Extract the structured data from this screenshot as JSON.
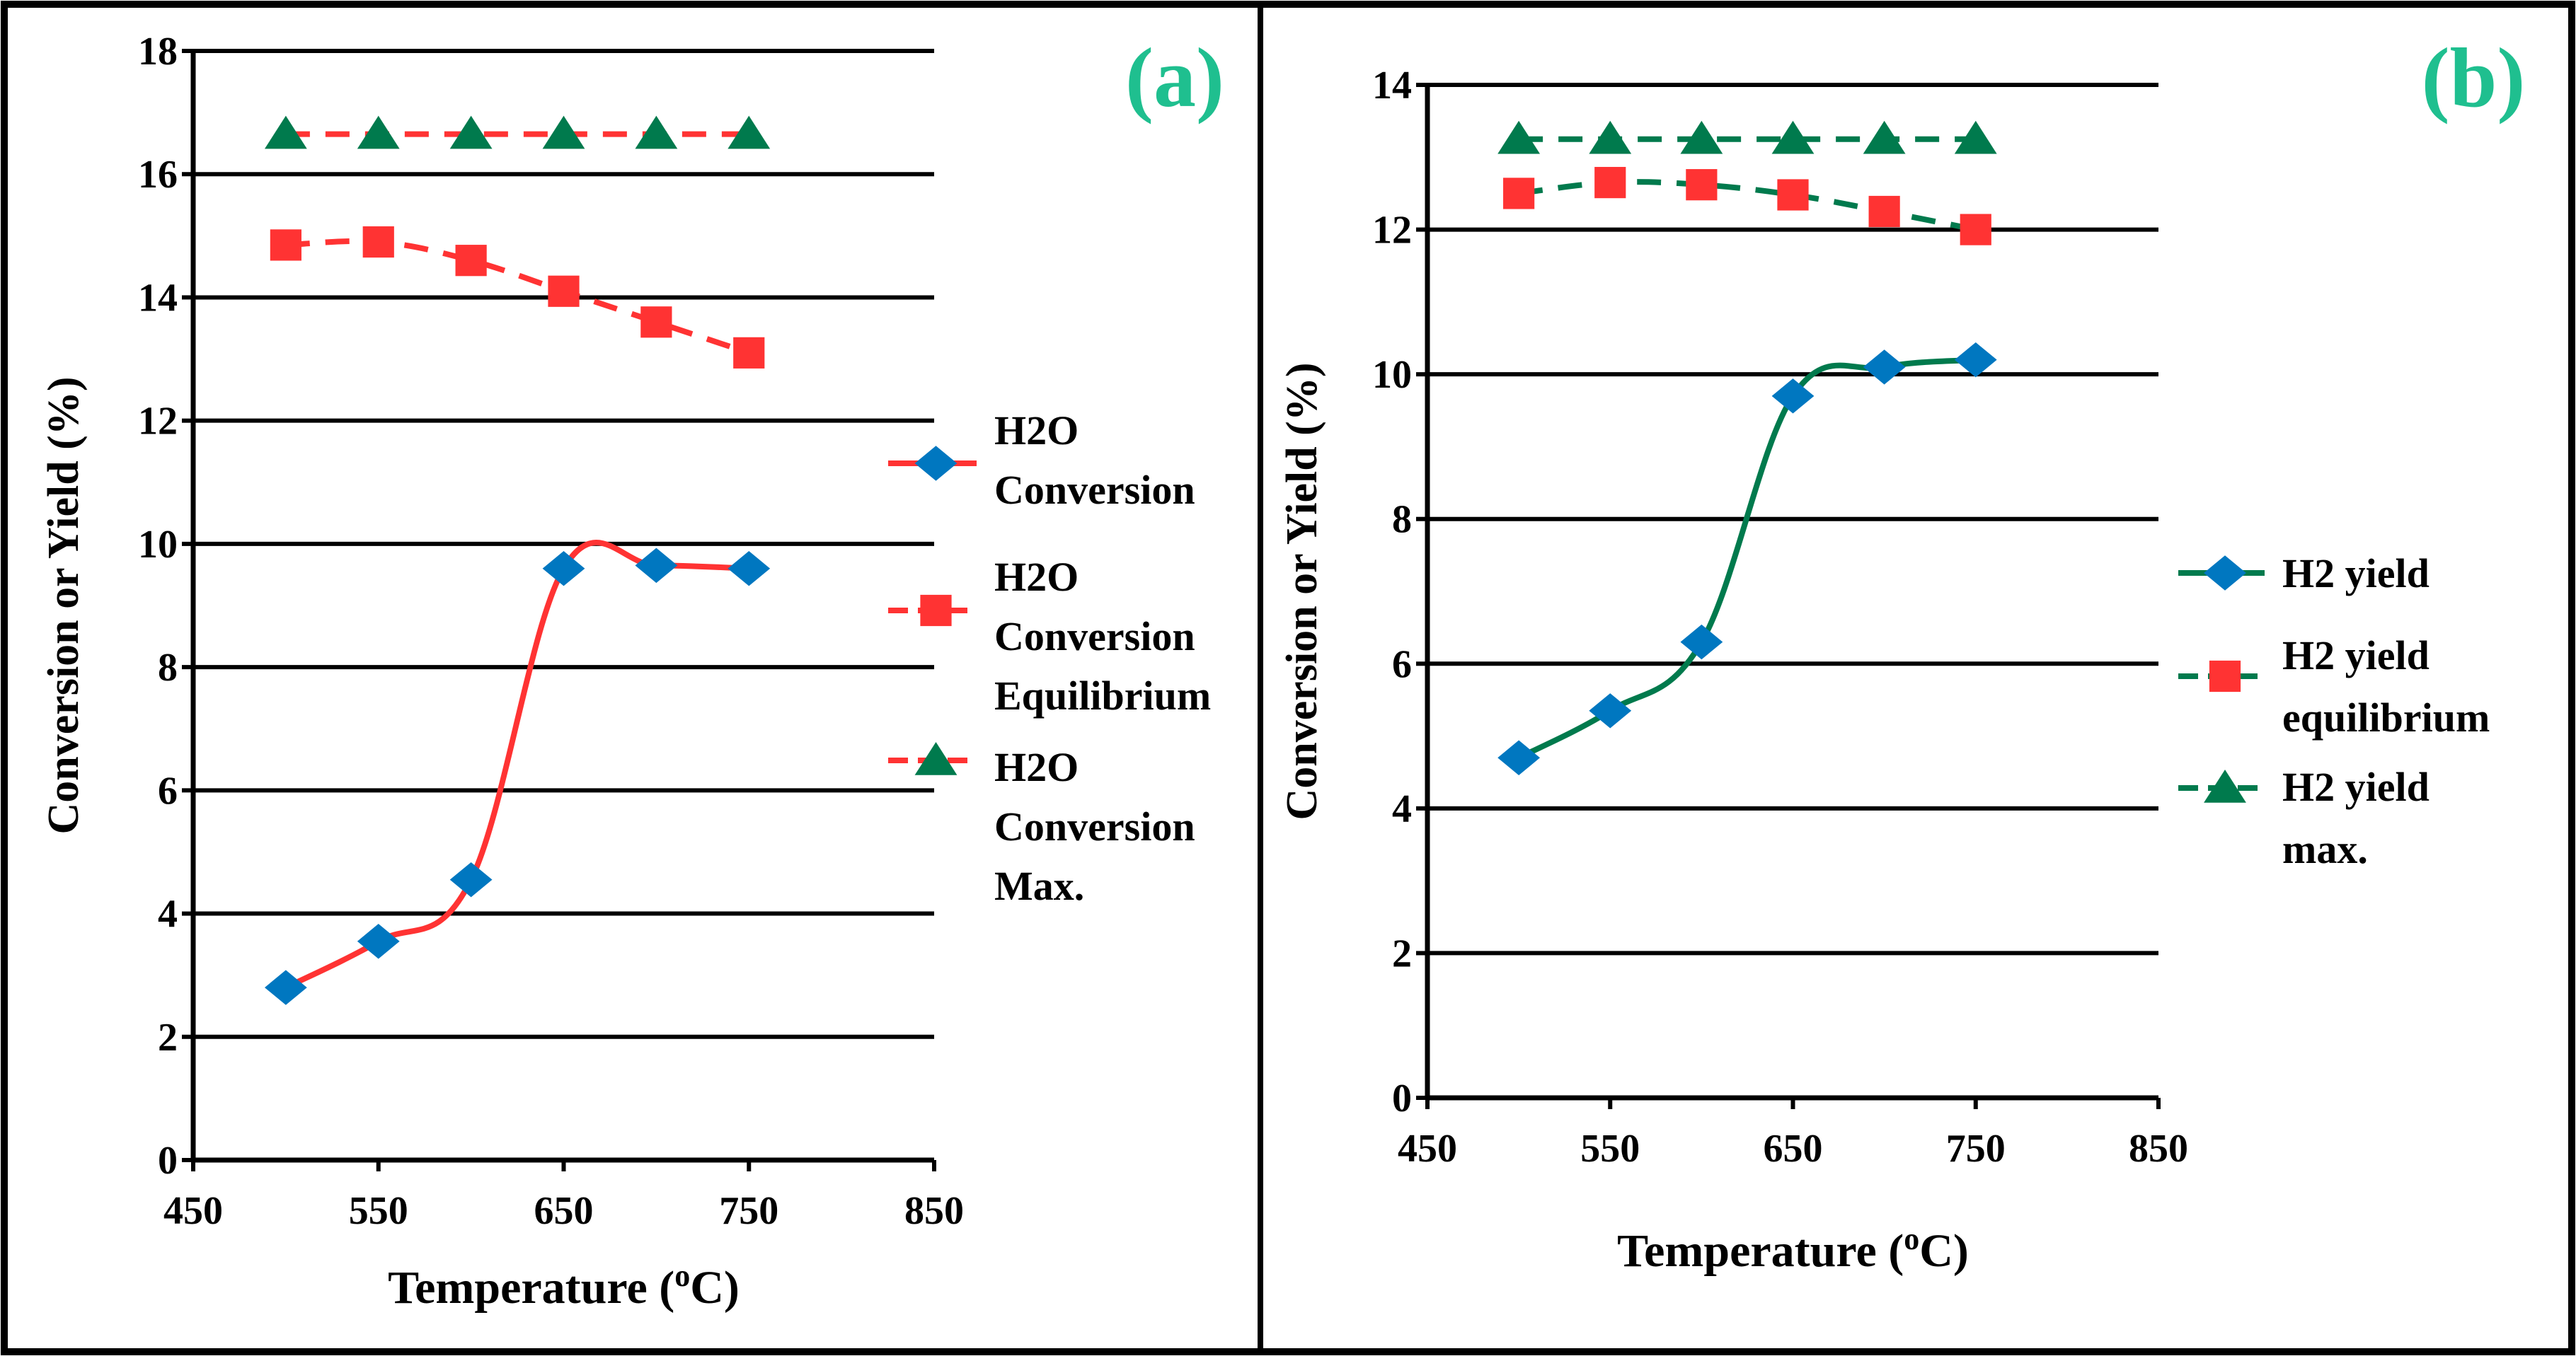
{
  "colors": {
    "red": "#ff3333",
    "green": "#007a4d",
    "blue": "#0077c0",
    "panel_label": "#1fbf8f",
    "grid": "#000000"
  },
  "chart_data": [
    {
      "type": "line",
      "panel_label": "(a)",
      "xlabel": "Temperature (oC)",
      "xlabel_parts": [
        "Temperature (",
        "o",
        "C)"
      ],
      "ylabel": "Conversion or Yield (%)",
      "xlim": [
        450,
        850
      ],
      "xticks": [
        450,
        550,
        650,
        750,
        850
      ],
      "ylim": [
        0,
        18
      ],
      "yticks": [
        0,
        2,
        4,
        6,
        8,
        10,
        12,
        14,
        16,
        18
      ],
      "grid": "horizontal",
      "legend_placement": "right",
      "x": [
        500,
        550,
        600,
        650,
        700,
        750
      ],
      "series": [
        {
          "name": "H2O Conversion",
          "lines": [
            "H2O",
            "Conversion"
          ],
          "values": [
            2.8,
            3.55,
            4.55,
            9.6,
            9.65,
            9.6
          ],
          "line_color": "#ff3333",
          "dash": false,
          "smooth": true,
          "marker": "diamond",
          "marker_color": "#0077c0"
        },
        {
          "name": "H2O Conversion Equilibrium",
          "lines": [
            "H2O",
            "Conversion",
            "Equilibrium"
          ],
          "values": [
            14.85,
            14.9,
            14.6,
            14.1,
            13.6,
            13.1
          ],
          "line_color": "#ff3333",
          "dash": true,
          "smooth": true,
          "marker": "square",
          "marker_color": "#ff3333"
        },
        {
          "name": "H2O Conversion Max.",
          "lines": [
            "H2O",
            "Conversion",
            "Max."
          ],
          "values": [
            16.65,
            16.65,
            16.65,
            16.65,
            16.65,
            16.65
          ],
          "line_color": "#ff3333",
          "dash": true,
          "smooth": false,
          "marker": "triangle",
          "marker_color": "#007a4d"
        }
      ]
    },
    {
      "type": "line",
      "panel_label": "(b)",
      "xlabel": "Temperature (oC)",
      "xlabel_parts": [
        "Temperature (",
        "o",
        "C)"
      ],
      "ylabel": "Conversion or Yield (%)",
      "xlim": [
        450,
        850
      ],
      "xticks": [
        450,
        550,
        650,
        750,
        850
      ],
      "ylim": [
        0,
        14
      ],
      "yticks": [
        0,
        2,
        4,
        6,
        8,
        10,
        12,
        14
      ],
      "grid": "horizontal",
      "legend_placement": "right",
      "x": [
        500,
        550,
        600,
        650,
        700,
        750
      ],
      "series": [
        {
          "name": "H2 yield",
          "lines": [
            "H2 yield"
          ],
          "values": [
            4.7,
            5.35,
            6.3,
            9.7,
            10.1,
            10.2
          ],
          "line_color": "#007a4d",
          "dash": false,
          "smooth": true,
          "marker": "diamond",
          "marker_color": "#0077c0"
        },
        {
          "name": "H2 yield equilibrium",
          "lines": [
            "H2 yield",
            "equilibrium"
          ],
          "values": [
            12.5,
            12.65,
            12.62,
            12.48,
            12.25,
            12.0
          ],
          "line_color": "#007a4d",
          "dash": true,
          "smooth": true,
          "marker": "square",
          "marker_color": "#ff3333"
        },
        {
          "name": "H2 yield max.",
          "lines": [
            "H2 yield",
            "max."
          ],
          "values": [
            13.25,
            13.25,
            13.25,
            13.25,
            13.25,
            13.25
          ],
          "line_color": "#007a4d",
          "dash": true,
          "smooth": false,
          "marker": "triangle",
          "marker_color": "#007a4d"
        }
      ]
    }
  ]
}
